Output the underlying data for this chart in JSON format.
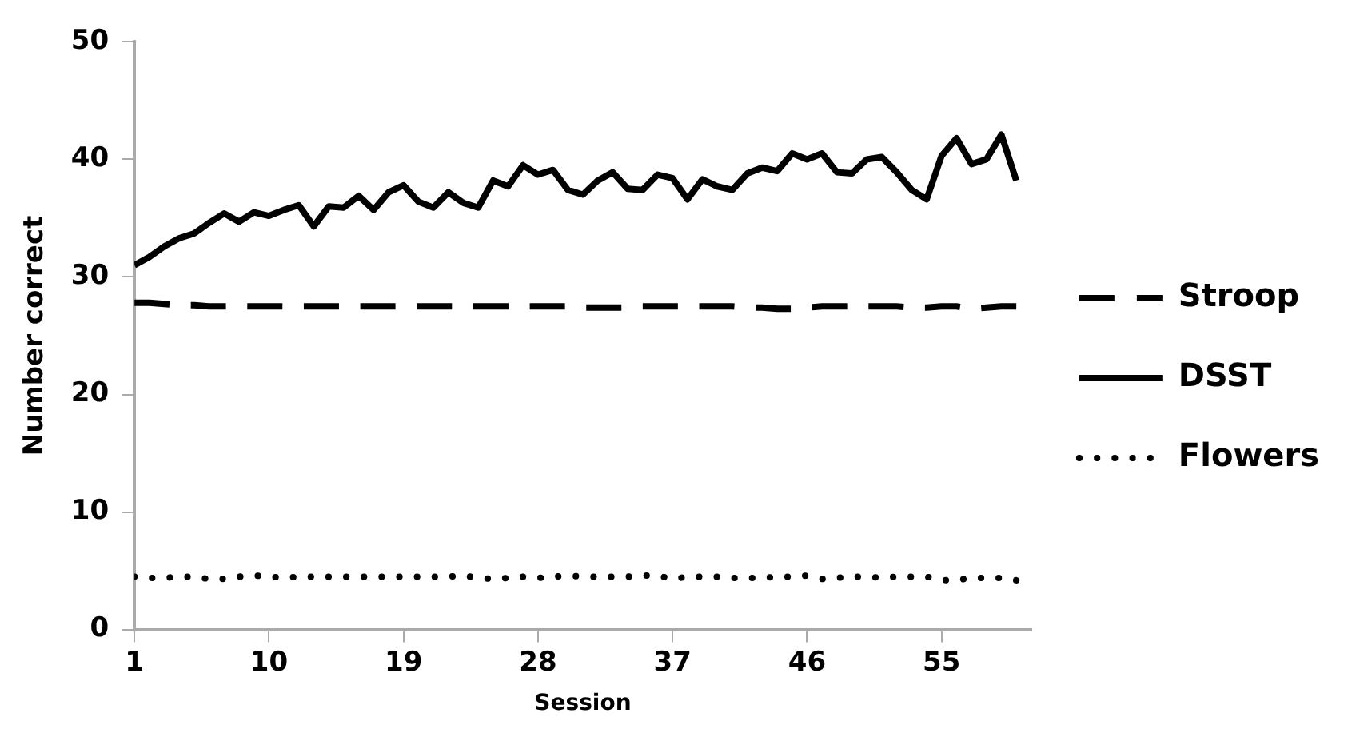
{
  "chart_data": {
    "type": "line",
    "xlabel": "Session",
    "ylabel": "Number correct",
    "x": [
      1,
      2,
      3,
      4,
      5,
      6,
      7,
      8,
      9,
      10,
      11,
      12,
      13,
      14,
      15,
      16,
      17,
      18,
      19,
      20,
      21,
      22,
      23,
      24,
      25,
      26,
      27,
      28,
      29,
      30,
      31,
      32,
      33,
      34,
      35,
      36,
      37,
      38,
      39,
      40,
      41,
      42,
      43,
      44,
      45,
      46,
      47,
      48,
      49,
      50,
      51,
      52,
      53,
      54,
      55,
      56,
      57,
      58,
      59,
      60
    ],
    "xlim": [
      1,
      61
    ],
    "xticks": [
      1,
      10,
      19,
      28,
      37,
      46,
      55
    ],
    "ylim": [
      0,
      50
    ],
    "yticks": [
      0,
      10,
      20,
      30,
      40,
      50
    ],
    "grid": false,
    "legend": "right",
    "marker": "none",
    "series": [
      {
        "name": "Stroop",
        "color": "#000000",
        "line_style": "dashed",
        "values": [
          27.8,
          27.8,
          27.7,
          27.6,
          27.6,
          27.5,
          27.5,
          27.5,
          27.5,
          27.5,
          27.5,
          27.5,
          27.5,
          27.5,
          27.5,
          27.5,
          27.5,
          27.5,
          27.5,
          27.5,
          27.5,
          27.5,
          27.5,
          27.5,
          27.5,
          27.5,
          27.5,
          27.5,
          27.5,
          27.5,
          27.4,
          27.4,
          27.4,
          27.4,
          27.5,
          27.5,
          27.5,
          27.5,
          27.5,
          27.5,
          27.5,
          27.4,
          27.4,
          27.3,
          27.3,
          27.4,
          27.5,
          27.5,
          27.5,
          27.5,
          27.5,
          27.5,
          27.4,
          27.4,
          27.5,
          27.5,
          27.3,
          27.4,
          27.5,
          27.5
        ]
      },
      {
        "name": "DSST",
        "color": "#000000",
        "line_style": "solid",
        "values": [
          31.0,
          31.7,
          32.6,
          33.3,
          33.7,
          34.6,
          35.4,
          34.7,
          35.5,
          35.2,
          35.7,
          36.1,
          34.3,
          36.0,
          35.9,
          36.9,
          35.7,
          37.2,
          37.8,
          36.4,
          35.9,
          37.2,
          36.3,
          35.9,
          38.2,
          37.7,
          39.5,
          38.7,
          39.1,
          37.4,
          37.0,
          38.2,
          38.9,
          37.5,
          37.4,
          38.7,
          38.4,
          36.6,
          38.3,
          37.7,
          37.4,
          38.8,
          39.3,
          39.0,
          40.5,
          40.0,
          40.5,
          38.9,
          38.8,
          40.0,
          40.2,
          38.9,
          37.4,
          36.6,
          40.3,
          41.8,
          39.6,
          40.0,
          42.1,
          38.2
        ]
      },
      {
        "name": "Flowers",
        "color": "#000000",
        "line_style": "dotted",
        "values": [
          4.5,
          4.4,
          4.4,
          4.5,
          4.5,
          4.3,
          4.3,
          4.5,
          4.6,
          4.5,
          4.4,
          4.5,
          4.5,
          4.5,
          4.5,
          4.5,
          4.5,
          4.5,
          4.5,
          4.5,
          4.5,
          4.5,
          4.6,
          4.4,
          4.3,
          4.4,
          4.5,
          4.4,
          4.5,
          4.6,
          4.5,
          4.5,
          4.5,
          4.5,
          4.6,
          4.6,
          4.3,
          4.5,
          4.5,
          4.5,
          4.4,
          4.4,
          4.4,
          4.5,
          4.5,
          4.6,
          4.3,
          4.4,
          4.5,
          4.5,
          4.4,
          4.5,
          4.5,
          4.5,
          4.2,
          4.2,
          4.4,
          4.4,
          4.4,
          4.2
        ]
      }
    ]
  }
}
